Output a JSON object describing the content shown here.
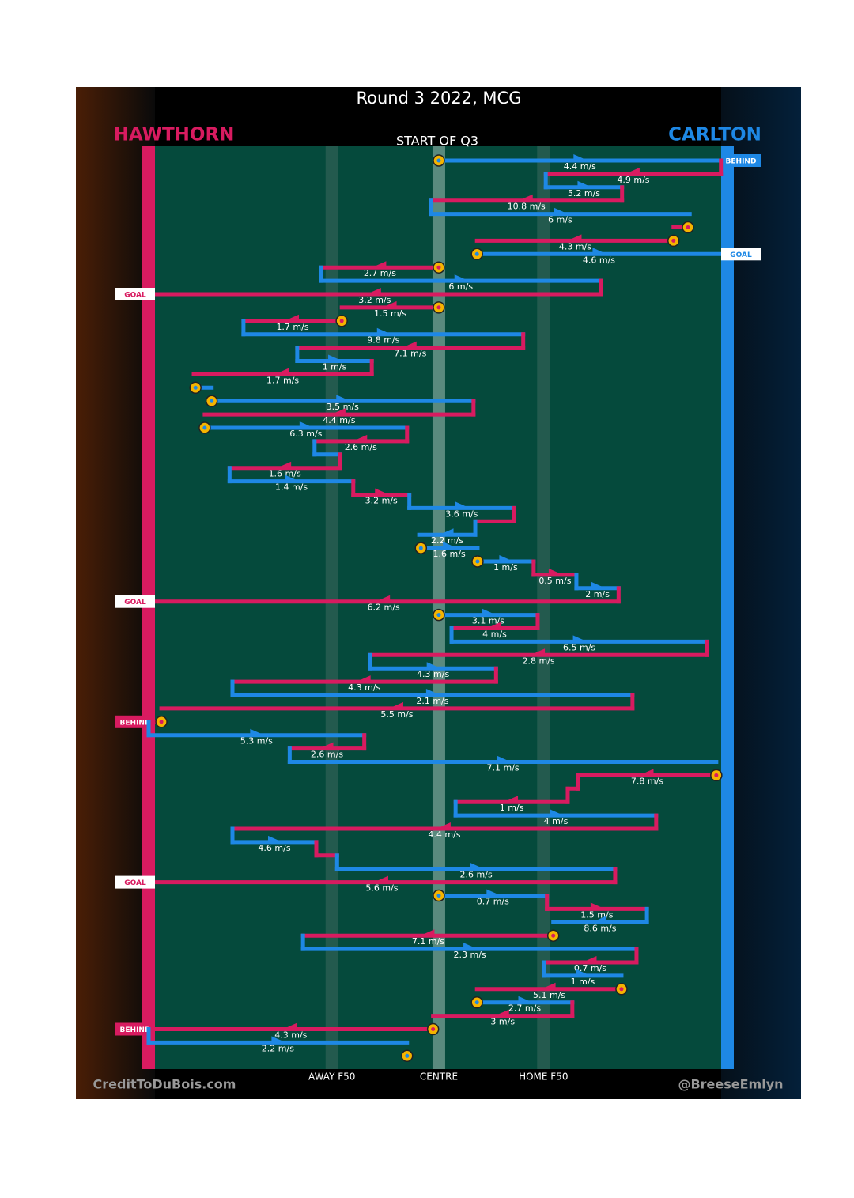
{
  "chart_data": {
    "type": "possession-chain",
    "title": "Round 3 2022, MCG",
    "subtitle": "START OF Q3",
    "credit_left": "CreditToDuBois.com",
    "credit_right": "@BreeseEmlyn",
    "teams": [
      {
        "name": "HAWTHORN",
        "color": "#d81b60"
      },
      {
        "name": "CARLTON",
        "color": "#1e88e5"
      }
    ],
    "field_lines": [
      {
        "label": "AWAY F50",
        "position": 31.7
      },
      {
        "label": "CENTRE",
        "position": 50.2
      },
      {
        "label": "HOME F50",
        "position": 68.3
      }
    ],
    "segments": [
      {
        "team": 1,
        "from": 50.2,
        "to": 99.0,
        "speed": 4.4,
        "speed_label": "4.4 m/s",
        "start": true,
        "outcome": "BEHIND"
      },
      {
        "team": 0,
        "from": 99.0,
        "to": 68.7,
        "speed": 4.9,
        "speed_label": "4.9 m/s"
      },
      {
        "team": 1,
        "from": 68.7,
        "to": 81.9,
        "speed": 5.2,
        "speed_label": "5.2 m/s"
      },
      {
        "team": 0,
        "from": 81.9,
        "to": 48.8,
        "speed": 10.8,
        "speed_label": "10.8 m/s"
      },
      {
        "team": 1,
        "from": 48.8,
        "to": 93.6,
        "speed": 6,
        "speed_label": "6 m/s"
      },
      {
        "team": 0,
        "from": 93.3,
        "to": 90.8,
        "speed": null,
        "speed_label": null,
        "start": true
      },
      {
        "team": 0,
        "from": 90.8,
        "to": 56.8,
        "speed": 4.3,
        "speed_label": "4.3 m/s",
        "start": true
      },
      {
        "team": 1,
        "from": 56.8,
        "to": 99.0,
        "speed": 4.6,
        "speed_label": "4.6 m/s",
        "start": true,
        "outcome": "GOAL"
      },
      {
        "team": 0,
        "from": 50.2,
        "to": 29.8,
        "speed": 2.7,
        "speed_label": "2.7 m/s",
        "start": true
      },
      {
        "team": 1,
        "from": 29.8,
        "to": 78.2,
        "speed": 6,
        "speed_label": "6 m/s"
      },
      {
        "team": 0,
        "from": 78.2,
        "to": 0,
        "speed": 3.2,
        "speed_label": "3.2 m/s",
        "outcome": "GOAL"
      },
      {
        "team": 0,
        "from": 50.2,
        "to": 33.4,
        "speed": 1.5,
        "speed_label": "1.5 m/s",
        "start": true
      },
      {
        "team": 0,
        "from": 33.4,
        "to": 16.4,
        "speed": 1.7,
        "speed_label": "1.7 m/s",
        "start": true
      },
      {
        "team": 1,
        "from": 16.4,
        "to": 64.8,
        "speed": 9.8,
        "speed_label": "9.8 m/s"
      },
      {
        "team": 0,
        "from": 64.8,
        "to": 25.7,
        "speed": 7.1,
        "speed_label": "7.1 m/s"
      },
      {
        "team": 1,
        "from": 25.7,
        "to": 38.6,
        "speed": 1,
        "speed_label": "1 m/s"
      },
      {
        "team": 0,
        "from": 38.6,
        "to": 7.8,
        "speed": 1.7,
        "speed_label": "1.7 m/s"
      },
      {
        "team": 1,
        "from": 8.1,
        "to": 10.9,
        "speed": null,
        "speed_label": null,
        "start": true
      },
      {
        "team": 1,
        "from": 10.9,
        "to": 56.2,
        "speed": 3.5,
        "speed_label": "3.5 m/s",
        "start": true
      },
      {
        "team": 0,
        "from": 56.2,
        "to": 9.7,
        "speed": 4.4,
        "speed_label": "4.4 m/s"
      },
      {
        "team": 1,
        "from": 9.7,
        "to": 44.7,
        "speed": 6.3,
        "speed_label": "6.3 m/s",
        "start": true
      },
      {
        "team": 0,
        "from": 44.7,
        "to": 28.7,
        "speed": 2.6,
        "speed_label": "2.6 m/s"
      },
      {
        "team": 1,
        "from": 28.7,
        "to": 33.1,
        "speed": null,
        "speed_label": null
      },
      {
        "team": 0,
        "from": 33.1,
        "to": 14.0,
        "speed": 1.6,
        "speed_label": "1.6 m/s"
      },
      {
        "team": 1,
        "from": 14.0,
        "to": 35.4,
        "speed": 1.4,
        "speed_label": "1.4 m/s"
      },
      {
        "team": 0,
        "from": 35.4,
        "to": 45.1,
        "speed": 3.2,
        "speed_label": "3.2 m/s"
      },
      {
        "team": 1,
        "from": 45.1,
        "to": 63.2,
        "speed": 3.6,
        "speed_label": "3.6 m/s"
      },
      {
        "team": 0,
        "from": 63.2,
        "to": 56.5,
        "speed": null,
        "speed_label": null
      },
      {
        "team": 1,
        "from": 56.5,
        "to": 46.8,
        "speed": 2.2,
        "speed_label": "2.2 m/s"
      },
      {
        "team": 1,
        "from": 47.1,
        "to": 56.9,
        "speed": 1.6,
        "speed_label": "1.6 m/s",
        "start": true
      },
      {
        "team": 1,
        "from": 56.9,
        "to": 66.6,
        "speed": 1,
        "speed_label": "1 m/s",
        "start": true
      },
      {
        "team": 0,
        "from": 66.6,
        "to": 74.0,
        "speed": 0.5,
        "speed_label": "0.5 m/s"
      },
      {
        "team": 1,
        "from": 74.0,
        "to": 81.3,
        "speed": 2,
        "speed_label": "2 m/s"
      },
      {
        "team": 0,
        "from": 81.3,
        "to": 0,
        "speed": 6.2,
        "speed_label": "6.2 m/s",
        "outcome": "GOAL"
      },
      {
        "team": 1,
        "from": 50.2,
        "to": 67.3,
        "speed": 3.1,
        "speed_label": "3.1 m/s",
        "start": true
      },
      {
        "team": 0,
        "from": 67.3,
        "to": 52.4,
        "speed": 4,
        "speed_label": "4 m/s"
      },
      {
        "team": 1,
        "from": 52.4,
        "to": 96.6,
        "speed": 6.5,
        "speed_label": "6.5 m/s"
      },
      {
        "team": 0,
        "from": 96.6,
        "to": 38.3,
        "speed": 2.8,
        "speed_label": "2.8 m/s"
      },
      {
        "team": 1,
        "from": 38.3,
        "to": 60.1,
        "speed": 4.3,
        "speed_label": "4.3 m/s"
      },
      {
        "team": 0,
        "from": 60.1,
        "to": 14.5,
        "speed": 4.3,
        "speed_label": "4.3 m/s"
      },
      {
        "team": 1,
        "from": 14.5,
        "to": 83.7,
        "speed": 2.1,
        "speed_label": "2.1 m/s"
      },
      {
        "team": 0,
        "from": 83.7,
        "to": 2.2,
        "speed": 5.5,
        "speed_label": "5.5 m/s"
      },
      {
        "team": 0,
        "from": 2.2,
        "to": 0,
        "speed": null,
        "speed_label": null,
        "start": true,
        "outcome": "BEHIND"
      },
      {
        "team": 1,
        "from": 0,
        "to": 37.3,
        "speed": 5.3,
        "speed_label": "5.3 m/s"
      },
      {
        "team": 0,
        "from": 37.3,
        "to": 24.4,
        "speed": 2.6,
        "speed_label": "2.6 m/s"
      },
      {
        "team": 1,
        "from": 24.4,
        "to": 98.2,
        "speed": 7.1,
        "speed_label": "7.1 m/s"
      },
      {
        "team": 0,
        "from": 98.2,
        "to": 74.3,
        "speed": 7.8,
        "speed_label": "7.8 m/s",
        "start": true
      },
      {
        "team": 0,
        "from": 74.3,
        "to": 72.5,
        "speed": null,
        "speed_label": null
      },
      {
        "team": 0,
        "from": 72.5,
        "to": 53.1,
        "speed": 1,
        "speed_label": "1 m/s"
      },
      {
        "team": 1,
        "from": 53.1,
        "to": 87.8,
        "speed": 4,
        "speed_label": "4 m/s"
      },
      {
        "team": 0,
        "from": 87.8,
        "to": 14.5,
        "speed": 4.4,
        "speed_label": "4.4 m/s"
      },
      {
        "team": 1,
        "from": 14.5,
        "to": 29.0,
        "speed": 4.6,
        "speed_label": "4.6 m/s"
      },
      {
        "team": 0,
        "from": 29.0,
        "to": 32.6,
        "speed": null,
        "speed_label": null
      },
      {
        "team": 1,
        "from": 32.6,
        "to": 80.7,
        "speed": 2.6,
        "speed_label": "2.6 m/s"
      },
      {
        "team": 0,
        "from": 80.7,
        "to": 0,
        "speed": 5.6,
        "speed_label": "5.6 m/s",
        "outcome": "GOAL"
      },
      {
        "team": 1,
        "from": 50.2,
        "to": 68.9,
        "speed": 0.7,
        "speed_label": "0.7 m/s",
        "start": true
      },
      {
        "team": 0,
        "from": 68.9,
        "to": 86.2,
        "speed": 1.5,
        "speed_label": "1.5 m/s"
      },
      {
        "team": 1,
        "from": 86.2,
        "to": 70.0,
        "speed": 8.6,
        "speed_label": "8.6 m/s"
      },
      {
        "team": 0,
        "from": 70.0,
        "to": 26.7,
        "speed": 7.1,
        "speed_label": "7.1 m/s",
        "start": true
      },
      {
        "team": 1,
        "from": 26.7,
        "to": 84.4,
        "speed": 2.3,
        "speed_label": "2.3 m/s"
      },
      {
        "team": 0,
        "from": 84.4,
        "to": 68.4,
        "speed": 0.7,
        "speed_label": "0.7 m/s"
      },
      {
        "team": 1,
        "from": 68.4,
        "to": 81.8,
        "speed": 1,
        "speed_label": "1 m/s"
      },
      {
        "team": 0,
        "from": 81.8,
        "to": 56.8,
        "speed": 5.1,
        "speed_label": "5.1 m/s",
        "start": true
      },
      {
        "team": 1,
        "from": 56.8,
        "to": 73.3,
        "speed": 2.7,
        "speed_label": "2.7 m/s",
        "start": true
      },
      {
        "team": 0,
        "from": 73.3,
        "to": 49.2,
        "speed": 3,
        "speed_label": "3 m/s"
      },
      {
        "team": 0,
        "from": 49.2,
        "to": 0,
        "speed": 4.3,
        "speed_label": "4.3 m/s",
        "start": true,
        "outcome": "BEHIND"
      },
      {
        "team": 1,
        "from": 0,
        "to": 44.7,
        "speed": 2.2,
        "speed_label": "2.2 m/s"
      }
    ]
  }
}
